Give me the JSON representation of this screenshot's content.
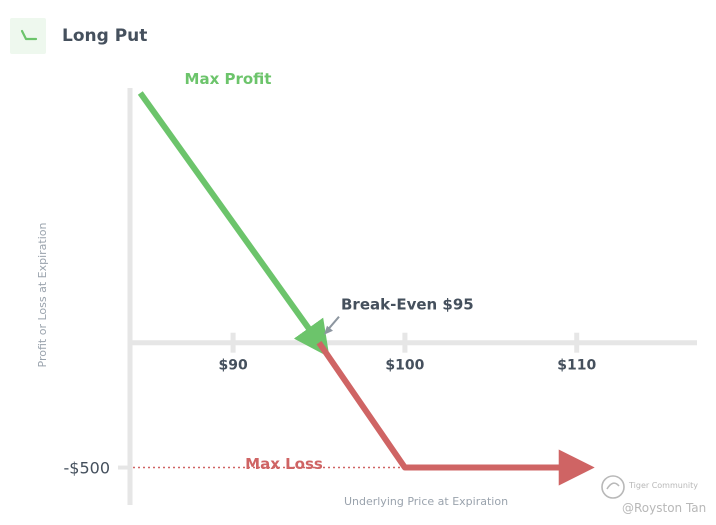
{
  "header": {
    "title": "Long Put",
    "icon": "long-put-payoff-icon",
    "icon_color": "#6cc46b"
  },
  "colors": {
    "profit": "#6cc46b",
    "loss": "#cf6464",
    "axis": "#e6e6e6",
    "text_dark": "#45505d",
    "text_axis": "#9aa3ad",
    "watermark": "#b8b8b8"
  },
  "chart_data": {
    "type": "line",
    "xlabel": "Underlying Price at Expiration",
    "ylabel": "Profit or Loss at Expiration",
    "x_ticks": [
      {
        "value": 90,
        "label": "$90"
      },
      {
        "value": 100,
        "label": "$100"
      },
      {
        "value": 110,
        "label": "$110"
      }
    ],
    "y_ticks": [
      {
        "value": -500,
        "label": "-$500"
      }
    ],
    "xlim": [
      84,
      117
    ],
    "ylim": [
      -650,
      1020
    ],
    "series": [
      {
        "name": "Max Profit",
        "color": "#6cc46b",
        "x": [
          84.6,
          95
        ],
        "y": [
          1000,
          0
        ]
      },
      {
        "name": "Max Loss",
        "color": "#cf6464",
        "x": [
          95,
          100,
          110
        ],
        "y": [
          0,
          -500,
          -500
        ]
      }
    ],
    "annotations": {
      "break_even": {
        "label": "Break-Even $95",
        "x": 95,
        "y": 0
      },
      "max_profit": "Max Profit",
      "max_loss": "Max Loss"
    }
  },
  "watermark": {
    "brand": "Tiger Community",
    "author": "@Royston Tan"
  }
}
